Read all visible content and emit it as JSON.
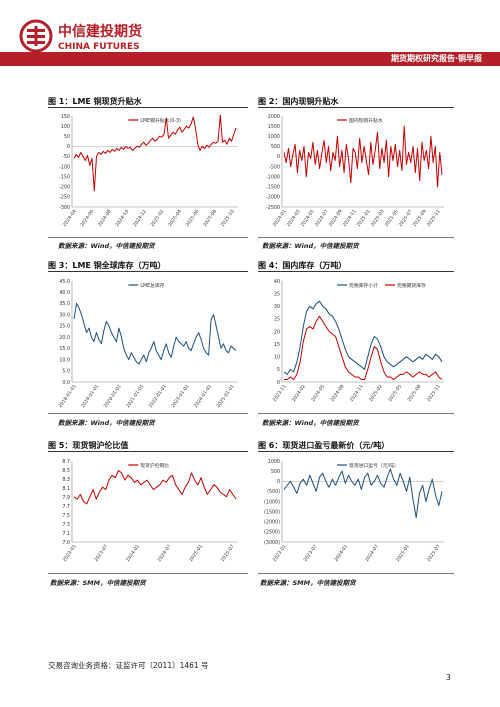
{
  "header": {
    "company_cn": "中信建投期货",
    "company_en": "CHINA FUTURES",
    "report_title": "期货期权研究报告·铜早报",
    "brand_color": "#b51f27"
  },
  "figures": [
    {
      "title": "图 1：LME 铜现货升贴水",
      "source": "数据来源：Wind，中信建投期货",
      "chart_data": {
        "type": "line",
        "series": [
          {
            "name": "LME铜升贴水(0-3)",
            "color": "#c00000",
            "values": [
              -60,
              -40,
              -55,
              -30,
              -50,
              -70,
              -45,
              -95,
              -60,
              -220,
              -50,
              -30,
              -40,
              -25,
              -35,
              -20,
              -30,
              -15,
              -25,
              -10,
              -20,
              -5,
              -15,
              0,
              -10,
              -5,
              -20,
              -10,
              0,
              -5,
              10,
              20,
              5,
              15,
              30,
              40,
              25,
              35,
              50,
              45,
              60,
              140,
              40,
              55,
              70,
              60,
              80,
              95,
              70,
              85,
              100,
              90,
              110,
              145,
              90,
              10,
              -20,
              0,
              -10,
              5,
              -5,
              10,
              20,
              15,
              25,
              155,
              20,
              30,
              10,
              40,
              25,
              60,
              90
            ]
          }
        ],
        "x_ticks": [
          "2024-04",
          "2024-06",
          "2024-08",
          "2024-10",
          "2024-12",
          "2025-02",
          "2025-04",
          "2025-06",
          "2025-08",
          "2025-10"
        ],
        "ylim": [
          -300,
          150
        ],
        "y_ticks": [
          "150",
          "100",
          "50",
          "0",
          "-50",
          "-100",
          "-150",
          "-200",
          "-250",
          "-300"
        ]
      }
    },
    {
      "title": "图 2：国内现铜升贴水",
      "source": "数据来源：Wind，中信建投期货",
      "chart_data": {
        "type": "line",
        "series": [
          {
            "name": "国内现铜升贴水",
            "color": "#c00000",
            "values": [
              200,
              -300,
              400,
              -500,
              100,
              600,
              -800,
              300,
              -200,
              500,
              -1000,
              200,
              -100,
              700,
              -400,
              300,
              -600,
              150,
              800,
              -300,
              500,
              -700,
              200,
              -200,
              1000,
              -500,
              300,
              -800,
              600,
              -100,
              -1300,
              400,
              200,
              -600,
              900,
              -300,
              500,
              -200,
              -900,
              700,
              -400,
              300,
              1200,
              -600,
              400,
              -300,
              800,
              -1000,
              500,
              -200,
              600,
              -500,
              300,
              -700,
              1500,
              -400,
              200,
              -300,
              500,
              -800,
              400,
              -1200,
              700,
              -200,
              300,
              -600,
              1000,
              -300,
              500,
              -1500,
              200,
              -900
            ]
          }
        ],
        "x_ticks": [
          "2024-01",
          "2024-03",
          "2024-05",
          "2024-07",
          "2024-09",
          "2024-11",
          "2025-01",
          "2025-03",
          "2025-05",
          "2025-07",
          "2025-09",
          "2025-11"
        ],
        "ylim": [
          -2500,
          2000
        ],
        "y_ticks": [
          "2000",
          "1500",
          "1000",
          "500",
          "0",
          "-500",
          "-1000",
          "-1500",
          "-2000",
          "-2500"
        ]
      }
    },
    {
      "title": "图 3：LME 铜全球库存（万吨）",
      "source": "数据来源：Wind，中信建投期货",
      "chart_data": {
        "type": "line",
        "series": [
          {
            "name": "LME总库存",
            "color": "#1f4e79",
            "values": [
              28,
              35,
              33,
              30,
              26,
              22,
              24,
              20,
              18,
              22,
              19,
              17,
              23,
              27,
              25,
              22,
              20,
              18,
              24,
              20,
              15,
              12,
              10,
              13,
              11,
              9,
              8,
              10,
              12,
              9,
              13,
              15,
              18,
              14,
              12,
              10,
              14,
              17,
              13,
              11,
              16,
              20,
              18,
              17,
              16,
              18,
              15,
              14,
              17,
              20,
              22,
              19,
              15,
              13,
              12,
              28,
              30,
              25,
              20,
              15,
              17,
              14,
              13,
              16,
              15,
              14
            ]
          }
        ],
        "x_ticks": [
          "2018-01-01",
          "2019-01-01",
          "2020-01-01",
          "2021-01-01",
          "2022-01-01",
          "2023-01-01",
          "2024-01-01",
          "2025-01-01"
        ],
        "ylim": [
          0,
          45
        ],
        "y_ticks": [
          "45.0",
          "40.0",
          "35.0",
          "30.0",
          "25.0",
          "20.0",
          "15.0",
          "10.0",
          "5.0",
          "0.0"
        ]
      }
    },
    {
      "title": "图 4：国内库存（万吨）",
      "source": "数据来源：Wind，中信建投期货",
      "chart_data": {
        "type": "line",
        "series": [
          {
            "name": "完税库存小计",
            "color": "#1f4e79",
            "values": [
              4,
              3,
              5,
              4,
              8,
              14,
              22,
              28,
              30,
              29,
              31,
              32,
              30,
              29,
              27,
              26,
              24,
              21,
              17,
              13,
              10,
              9,
              8,
              7,
              6,
              5,
              10,
              15,
              18,
              17,
              14,
              10,
              8,
              7,
              6,
              7,
              8,
              9,
              10,
              9,
              8,
              9,
              10,
              9,
              11,
              10,
              9,
              11,
              10,
              8
            ]
          },
          {
            "name": "完税期货库存",
            "color": "#c00000",
            "values": [
              1,
              1,
              2,
              1,
              3,
              8,
              16,
              21,
              22,
              21,
              24,
              26,
              24,
              22,
              20,
              19,
              18,
              14,
              10,
              6,
              4,
              3,
              2,
              2,
              1,
              1,
              5,
              10,
              14,
              13,
              8,
              4,
              2,
              2,
              1,
              2,
              3,
              3,
              4,
              3,
              2,
              3,
              4,
              3,
              3,
              2,
              3,
              4,
              2,
              1
            ]
          }
        ],
        "x_ticks": [
          "2023-11",
          "2024-02",
          "2024-05",
          "2024-08",
          "2024-11",
          "2025-02",
          "2025-05",
          "2025-08",
          "2025-11"
        ],
        "ylim": [
          0,
          40
        ],
        "y_ticks": [
          "40",
          "35",
          "30",
          "25",
          "20",
          "15",
          "10",
          "5",
          "0"
        ]
      }
    },
    {
      "title": "图 5：现货铜沪伦比值",
      "source": "数据来源：SMM，中信建投期货",
      "chart_data": {
        "type": "line",
        "series": [
          {
            "name": "现货沪伦铜比",
            "color": "#c00000",
            "values": [
              7.95,
              7.9,
              8.0,
              7.85,
              7.8,
              7.95,
              8.1,
              7.9,
              8.05,
              8.15,
              8.1,
              8.3,
              8.4,
              8.35,
              8.5,
              8.45,
              8.3,
              8.4,
              8.35,
              8.25,
              8.3,
              8.2,
              8.25,
              8.3,
              8.2,
              8.1,
              8.15,
              8.2,
              8.3,
              8.25,
              8.35,
              8.4,
              8.2,
              8.1,
              8.0,
              8.15,
              8.25,
              8.45,
              8.3,
              8.2,
              8.35,
              8.15,
              8.0,
              8.1,
              8.2,
              8.15,
              8.05,
              8.0,
              7.95,
              8.1,
              8.0,
              7.9
            ]
          }
        ],
        "x_ticks": [
          "2023-01",
          "2023-07",
          "2024-01",
          "2024-07",
          "2025-01",
          "2025-07"
        ],
        "ylim": [
          7.0,
          8.7
        ],
        "y_ticks": [
          "8.7",
          "8.5",
          "8.3",
          "8.1",
          "7.9",
          "7.7",
          "7.5",
          "7.3",
          "7.1",
          "7.0"
        ]
      }
    },
    {
      "title": "图 6：现货进口盈亏最新价（元/吨）",
      "source": "数据来源：SMM，中信建投期货",
      "chart_data": {
        "type": "line",
        "series": [
          {
            "name": "现货进口盈亏（元/吨）",
            "color": "#1f4e79",
            "values": [
              -400,
              -200,
              0,
              -300,
              -600,
              -100,
              100,
              -200,
              300,
              -100,
              -500,
              200,
              400,
              0,
              -300,
              100,
              -200,
              200,
              500,
              -100,
              300,
              0,
              -200,
              100,
              -400,
              200,
              400,
              -200,
              0,
              300,
              -100,
              -300,
              200,
              600,
              100,
              -200,
              400,
              0,
              -500,
              200,
              -900,
              -1800,
              -600,
              -200,
              -1000,
              -400,
              100,
              -700,
              -1200,
              -500
            ]
          }
        ],
        "x_ticks": [
          "2023-01",
          "2023-07",
          "2024-01",
          "2024-07",
          "2025-01",
          "2025-07"
        ],
        "ylim": [
          -3000,
          1000
        ],
        "y_ticks": [
          "1000",
          "500",
          "0",
          "(500)",
          "(1000)",
          "(1500)",
          "(2000)",
          "(2500)",
          "(3000)"
        ]
      }
    }
  ],
  "footer": {
    "license": "交易咨询业务资格：证监许可〔2011〕1461 号",
    "page_number": "3"
  }
}
